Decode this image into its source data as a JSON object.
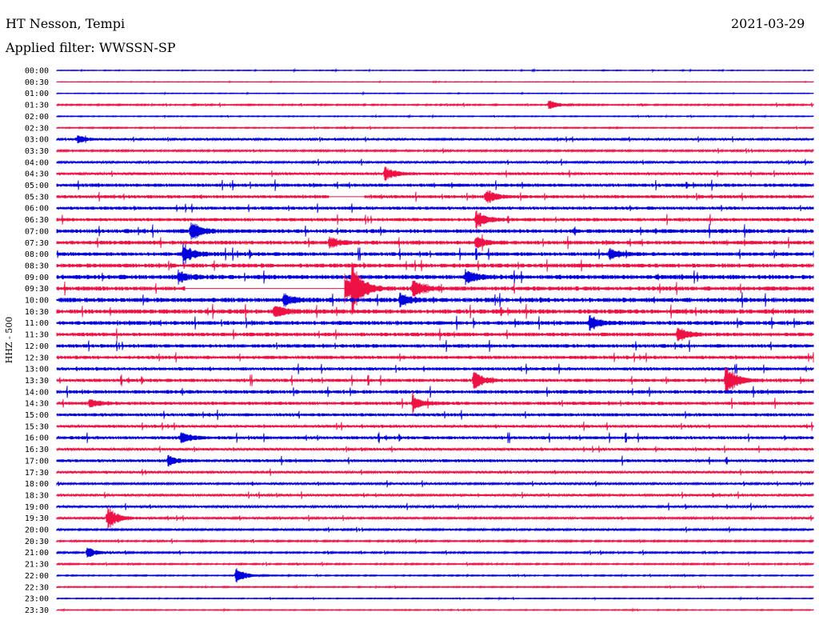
{
  "header": {
    "station": "HT Nesson, Tempi",
    "filter": "Applied filter: WWSSN-SP",
    "date": "2021-03-29"
  },
  "chart_data": {
    "type": "line",
    "title": "HT Nesson, Tempi",
    "subtitle": "Applied filter: WWSSN-SP",
    "ylabel": "HHZ - 500",
    "date": "2021-03-29",
    "row_labels": [
      "00:00",
      "00:30",
      "01:00",
      "01:30",
      "02:00",
      "02:30",
      "03:00",
      "03:30",
      "04:00",
      "04:30",
      "05:00",
      "05:30",
      "06:00",
      "06:30",
      "07:00",
      "07:30",
      "08:00",
      "08:30",
      "09:00",
      "09:30",
      "10:00",
      "10:30",
      "11:00",
      "11:30",
      "12:00",
      "12:30",
      "13:00",
      "13:30",
      "14:00",
      "14:30",
      "15:00",
      "15:30",
      "16:00",
      "16:30",
      "17:00",
      "17:30",
      "18:00",
      "18:30",
      "19:00",
      "19:30",
      "20:00",
      "20:30",
      "21:00",
      "21:30",
      "22:00",
      "22:30",
      "23:00",
      "23:30"
    ],
    "colors": {
      "even": "#0000dd",
      "odd": "#ee1144"
    },
    "trace_minutes": 30,
    "noise_levels": [
      0.3,
      0.2,
      0.3,
      0.6,
      0.4,
      0.5,
      0.9,
      0.8,
      0.9,
      1.2,
      1.5,
      1.4,
      1.4,
      1.5,
      1.8,
      1.7,
      1.7,
      1.8,
      2.0,
      1.9,
      2.0,
      2.0,
      1.8,
      1.7,
      1.6,
      1.5,
      1.4,
      1.5,
      1.6,
      1.5,
      1.4,
      1.2,
      1.4,
      1.1,
      1.3,
      1.0,
      0.9,
      1.0,
      1.0,
      0.9,
      0.8,
      0.7,
      0.7,
      0.6,
      0.5,
      0.5,
      0.4,
      0.4
    ],
    "events": [
      {
        "row": 3,
        "minute": 19.5,
        "amp": 6
      },
      {
        "row": 6,
        "minute": 0.8,
        "amp": 6
      },
      {
        "row": 9,
        "minute": 13.0,
        "amp": 10
      },
      {
        "row": 11,
        "minute": 17.0,
        "amp": 10
      },
      {
        "row": 13,
        "minute": 16.6,
        "amp": 12
      },
      {
        "row": 14,
        "minute": 5.3,
        "amp": 14
      },
      {
        "row": 15,
        "minute": 10.8,
        "amp": 8
      },
      {
        "row": 15,
        "minute": 16.6,
        "amp": 8
      },
      {
        "row": 16,
        "minute": 5.0,
        "amp": 14
      },
      {
        "row": 16,
        "minute": 21.9,
        "amp": 8
      },
      {
        "row": 18,
        "minute": 4.8,
        "amp": 8
      },
      {
        "row": 18,
        "minute": 16.2,
        "amp": 10
      },
      {
        "row": 19,
        "minute": 11.1,
        "amp": 44
      },
      {
        "row": 19,
        "minute": 11.7,
        "amp": 32
      },
      {
        "row": 19,
        "minute": 14.1,
        "amp": 16
      },
      {
        "row": 20,
        "minute": 9.0,
        "amp": 8
      },
      {
        "row": 20,
        "minute": 13.6,
        "amp": 8
      },
      {
        "row": 21,
        "minute": 8.6,
        "amp": 10
      },
      {
        "row": 22,
        "minute": 21.1,
        "amp": 10
      },
      {
        "row": 23,
        "minute": 24.6,
        "amp": 10
      },
      {
        "row": 27,
        "minute": 16.5,
        "amp": 12
      },
      {
        "row": 27,
        "minute": 26.5,
        "amp": 22
      },
      {
        "row": 29,
        "minute": 1.3,
        "amp": 6
      },
      {
        "row": 29,
        "minute": 14.1,
        "amp": 10
      },
      {
        "row": 32,
        "minute": 4.9,
        "amp": 8
      },
      {
        "row": 34,
        "minute": 4.4,
        "amp": 7
      },
      {
        "row": 39,
        "minute": 2.0,
        "amp": 16
      },
      {
        "row": 42,
        "minute": 1.2,
        "amp": 7
      },
      {
        "row": 44,
        "minute": 7.1,
        "amp": 10
      }
    ],
    "gaps": [
      {
        "row": 11,
        "start_minute": 10.8,
        "end_minute": 12.2
      },
      {
        "row": 19,
        "start_minute": 5.1,
        "end_minute": 11.4
      }
    ]
  }
}
